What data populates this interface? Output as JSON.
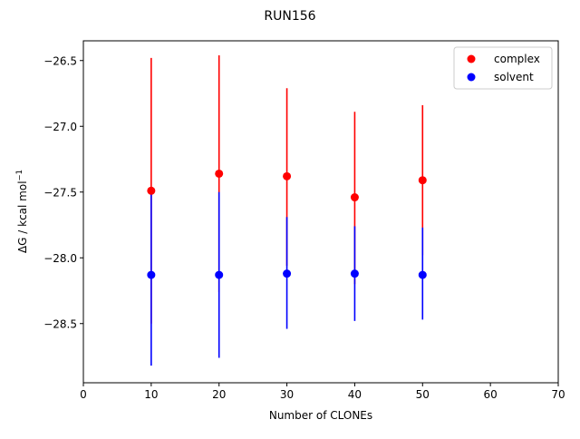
{
  "chart_data": {
    "type": "scatter",
    "title": "RUN156",
    "xlabel": "Number of CLONEs",
    "ylabel": "ΔG / kcal mol",
    "ylabel_superscript": "−1",
    "xlim": [
      0,
      70
    ],
    "ylim": [
      -28.95,
      -26.35
    ],
    "x_ticks": [
      0,
      10,
      20,
      30,
      40,
      50,
      60,
      70
    ],
    "y_ticks": [
      -26.5,
      -27.0,
      -27.5,
      -28.0,
      -28.5
    ],
    "y_tick_labels": [
      "−26.5",
      "−27.0",
      "−27.5",
      "−28.0",
      "−28.5"
    ],
    "grid": false,
    "legend_position": "top-right",
    "series": [
      {
        "name": "complex",
        "color": "#ff0000",
        "x": [
          10,
          20,
          30,
          40,
          50
        ],
        "y": [
          -27.49,
          -27.36,
          -27.38,
          -27.54,
          -27.41
        ],
        "err_low": [
          -28.5,
          -28.26,
          -28.06,
          -28.2,
          -27.98
        ],
        "err_high": [
          -26.48,
          -26.46,
          -26.71,
          -26.89,
          -26.84
        ]
      },
      {
        "name": "solvent",
        "color": "#0000ff",
        "x": [
          10,
          20,
          30,
          40,
          50
        ],
        "y": [
          -28.13,
          -28.13,
          -28.12,
          -28.12,
          -28.13
        ],
        "err_low": [
          -28.82,
          -28.76,
          -28.54,
          -28.48,
          -28.47
        ],
        "err_high": [
          -27.47,
          -27.5,
          -27.69,
          -27.76,
          -27.77
        ]
      }
    ]
  }
}
